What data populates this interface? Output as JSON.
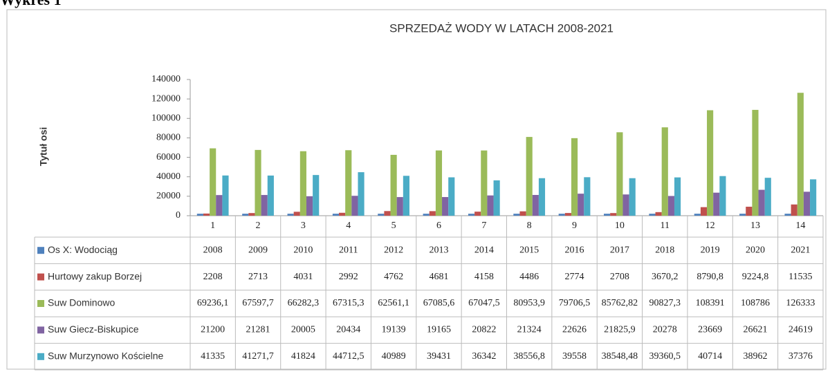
{
  "page_label": "Wykres 1",
  "chart_data": {
    "type": "bar",
    "title": "SPRZEDAŻ WODY W LATACH 2008-2021",
    "y_label": "Tytuł osi",
    "categories": [
      "1",
      "2",
      "3",
      "4",
      "5",
      "6",
      "7",
      "8",
      "9",
      "10",
      "11",
      "12",
      "13",
      "14"
    ],
    "ylim": [
      0,
      140000
    ],
    "yticks": [
      0,
      20000,
      40000,
      60000,
      80000,
      100000,
      120000,
      140000
    ],
    "grid": false,
    "series": [
      {
        "name": "Os X: Wodociąg",
        "color": "#4f81bd",
        "values": [
          2008,
          2009,
          2010,
          2011,
          2012,
          2013,
          2014,
          2015,
          2016,
          2017,
          2018,
          2019,
          2020,
          2021
        ]
      },
      {
        "name": "Hurtowy zakup Borzej",
        "color": "#c0504d",
        "values": [
          2208,
          2713,
          4031,
          2992,
          4762,
          4681,
          4158,
          4486,
          2774,
          2708,
          3670.2,
          8790.8,
          9224.8,
          11535
        ],
        "value_labels": [
          "2208",
          "2713",
          "4031",
          "2992",
          "4762",
          "4681",
          "4158",
          "4486",
          "2774",
          "2708",
          "3670,2",
          "8790,8",
          "9224,8",
          "11535"
        ]
      },
      {
        "name": "Suw Dominowo",
        "color": "#9bbb59",
        "values": [
          69236.1,
          67597.7,
          66282.3,
          67315.3,
          62561.1,
          67085.6,
          67047.5,
          80953.9,
          79706.5,
          85762.82,
          90827.3,
          108391,
          108786,
          126333
        ],
        "value_labels": [
          "69236,1",
          "67597,7",
          "66282,3",
          "67315,3",
          "62561,1",
          "67085,6",
          "67047,5",
          "80953,9",
          "79706,5",
          "85762,82",
          "90827,3",
          "108391",
          "108786",
          "126333"
        ]
      },
      {
        "name": "Suw Giecz-Biskupice",
        "color": "#8064a2",
        "values": [
          21200,
          21281,
          20005,
          20434,
          19139,
          19165,
          20822,
          21324,
          22626,
          21825.9,
          20278,
          23669,
          26621,
          24619
        ],
        "value_labels": [
          "21200",
          "21281",
          "20005",
          "20434",
          "19139",
          "19165",
          "20822",
          "21324",
          "22626",
          "21825,9",
          "20278",
          "23669",
          "26621",
          "24619"
        ]
      },
      {
        "name": "Suw Murzynowo Kościelne",
        "color": "#4bacc6",
        "values": [
          41335,
          41271.7,
          41824,
          44712.5,
          40989,
          39431,
          36342,
          38556.8,
          39558,
          38548.48,
          39360.5,
          40714,
          38962,
          37376
        ],
        "value_labels": [
          "41335",
          "41271,7",
          "41824",
          "44712,5",
          "40989",
          "39431",
          "36342",
          "38556,8",
          "39558",
          "38548,48",
          "39360,5",
          "40714",
          "38962",
          "37376"
        ]
      }
    ]
  }
}
